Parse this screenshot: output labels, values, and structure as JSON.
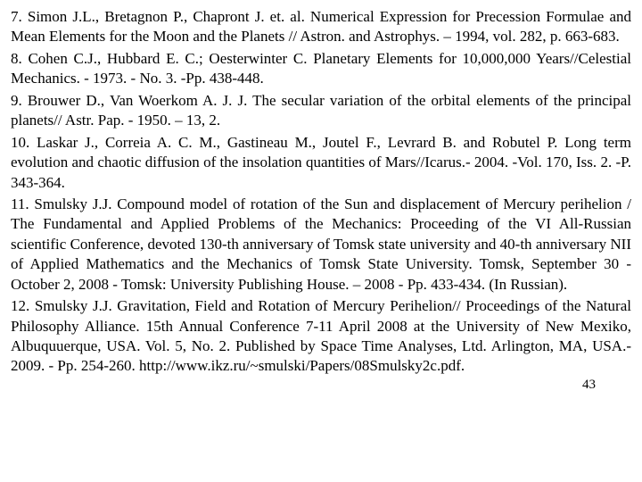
{
  "references": {
    "r7": "7. Simon J.L., Bretagnon P., Chapront J. et. al. Numerical Expression for Precession Formulae and Mean Elements for the Moon and the Planets // Astron. and Astrophys. – 1994, vol. 282, p. 663-683.",
    "r8": "8. Cohen C.J., Hubbard E. C.; Oesterwinter C. Planetary Elements for 10,000,000 Years//Celestial Mechanics. - 1973. - No. 3. -Pp. 438-448.",
    "r9": "9. Brouwer D., Van Woerkom A. J. J. The secular variation of the orbital elements of the principal planets// Astr. Pap. - 1950. – 13, 2.",
    "r10": "10. Laskar J., Correia A. C. M., Gastineau M., Joutel F., Levrard B. and Robutel P. Long term evolution and chaotic diffusion of the insolation quantities of Mars//Icarus.- 2004. -Vol. 170, Iss. 2. -P. 343-364.",
    "r11": "11. Smulsky J.J. Compound model of rotation of the Sun and displacement of Mercury perihelion / The Fundamental and Applied Problems of the Mechanics: Proceeding of the VI All-Russian scientific Conference, devoted 130-th anniversary of Tomsk state university and 40-th anniversary NII of Applied Mathematics and the Mechanics of Tomsk State University. Tomsk, September 30 - October 2, 2008 - Tomsk: University Publishing House. – 2008 - Pp. 433-434. (In Russian).",
    "r12": "12. Smulsky J.J. Gravitation, Field and Rotation of Mercury Perihelion// Proceedings of the Natural Philosophy Alliance. 15th Annual Conference 7-11 April 2008 at the University of New Mexiko, Albuquuerque, USA. Vol. 5, No. 2. Published by Space Time Analyses, Ltd. Arlington, MA, USA.- 2009. - Pp. 254-260. http://www.ikz.ru/~smulski/Papers/08Smulsky2c.pdf."
  },
  "pageNumber": "43",
  "style": {
    "background": "#ffffff",
    "textColor": "#000000",
    "fontFamily": "Times New Roman",
    "fontSizePt": 13,
    "align": "justify"
  }
}
